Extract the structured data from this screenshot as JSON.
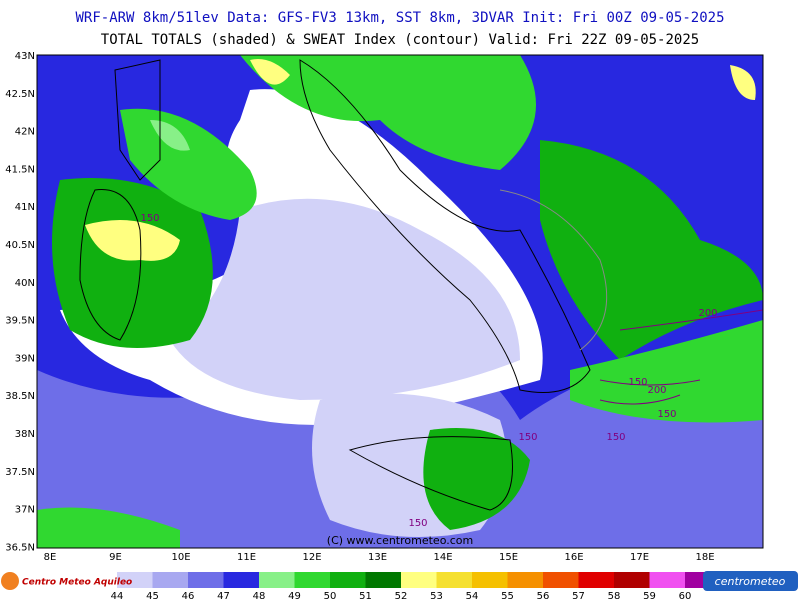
{
  "header": {
    "line1": "WRF-ARW 8km/51lev  Data: GFS-FV3 13km, SST 8km, 3DVAR  Init: Fri 00Z 09-05-2025",
    "line2": "TOTAL TOTALS (shaded) & SWEAT Index (contour)  Valid: Fri 22Z 09-05-2025"
  },
  "axes": {
    "lat_labels": [
      "43N",
      "42.5N",
      "42N",
      "41.5N",
      "41N",
      "40.5N",
      "40N",
      "39.5N",
      "39N",
      "38.5N",
      "38N",
      "37.5N",
      "37N",
      "36.5N"
    ],
    "lon_labels": [
      "8E",
      "9E",
      "10E",
      "11E",
      "12E",
      "13E",
      "14E",
      "15E",
      "16E",
      "17E",
      "18E"
    ]
  },
  "contour_labels": [
    "150",
    "200",
    "150",
    "200",
    "150",
    "150",
    "150",
    "150"
  ],
  "copyright": "(C) www.centrometeo.com",
  "colorbar": {
    "labels": [
      "44",
      "45",
      "46",
      "47",
      "48",
      "49",
      "50",
      "51",
      "52",
      "53",
      "54",
      "55",
      "56",
      "57",
      "58",
      "59",
      "60"
    ],
    "colors": [
      "#d2d2f8",
      "#a8a8f0",
      "#6e6ee8",
      "#2828e0",
      "#88f088",
      "#30d830",
      "#10b010",
      "#007800",
      "#ffff80",
      "#f5e030",
      "#f5c000",
      "#f59000",
      "#f05000",
      "#e00000",
      "#b00000",
      "#f050f0",
      "#a000a0"
    ]
  },
  "logos": {
    "left": "Centro Meteo Aquileo",
    "right": "centrometeo"
  }
}
